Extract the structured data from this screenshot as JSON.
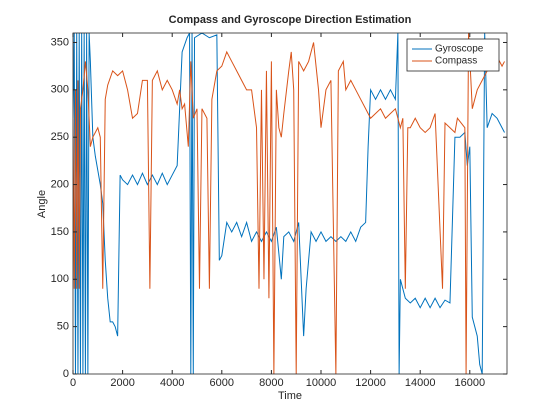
{
  "chart_data": {
    "type": "line",
    "title": "Compass and Gyroscope Direction Estimation",
    "x_label": "Time",
    "y_label": "Angle",
    "xlim": [
      0,
      17500
    ],
    "ylim": [
      0,
      360
    ],
    "xticks": [
      0,
      2000,
      4000,
      6000,
      8000,
      10000,
      12000,
      14000,
      16000
    ],
    "yticks": [
      0,
      50,
      100,
      150,
      200,
      250,
      300,
      350
    ],
    "legend": "upper right",
    "series": [
      {
        "name": "Gyroscope",
        "color": "#0072bd",
        "x": [
          0,
          50,
          100,
          150,
          200,
          250,
          300,
          350,
          400,
          450,
          500,
          550,
          600,
          650,
          700,
          800,
          900,
          1000,
          1100,
          1200,
          1300,
          1400,
          1500,
          1600,
          1700,
          1800,
          1900,
          2000,
          2200,
          2400,
          2600,
          2800,
          3000,
          3200,
          3400,
          3600,
          3800,
          4000,
          4200,
          4300,
          4400,
          4600,
          4700,
          4750,
          4800,
          4850,
          4900,
          5200,
          5500,
          5800,
          5900,
          6000,
          6200,
          6400,
          6600,
          6800,
          7000,
          7200,
          7400,
          7600,
          7800,
          8000,
          8200,
          8400,
          8500,
          8700,
          8900,
          9100,
          9200,
          9300,
          9400,
          9600,
          9800,
          10000,
          10200,
          10400,
          10600,
          10800,
          11000,
          11200,
          11400,
          11600,
          11800,
          11900,
          12000,
          12200,
          12400,
          12600,
          12800,
          13000,
          13100,
          13150,
          13200,
          13400,
          13600,
          13800,
          14000,
          14200,
          14400,
          14600,
          14800,
          15000,
          15200,
          15400,
          15600,
          15800,
          15900,
          16000,
          16100,
          16300,
          16400,
          16500,
          16600,
          16700,
          16900,
          17100,
          17300,
          17400
        ],
        "values": [
          270,
          360,
          0,
          360,
          0,
          360,
          0,
          360,
          0,
          360,
          0,
          360,
          0,
          360,
          330,
          250,
          230,
          215,
          200,
          180,
          120,
          80,
          55,
          55,
          50,
          40,
          210,
          205,
          200,
          210,
          200,
          212,
          200,
          210,
          200,
          212,
          200,
          210,
          220,
          280,
          340,
          355,
          360,
          0,
          360,
          0,
          355,
          360,
          355,
          358,
          120,
          125,
          160,
          150,
          160,
          145,
          160,
          140,
          150,
          140,
          150,
          140,
          155,
          100,
          145,
          150,
          140,
          160,
          100,
          40,
          90,
          150,
          140,
          150,
          140,
          145,
          140,
          145,
          140,
          150,
          140,
          155,
          160,
          240,
          300,
          290,
          300,
          290,
          300,
          290,
          360,
          0,
          100,
          80,
          75,
          80,
          70,
          80,
          70,
          80,
          70,
          78,
          75,
          250,
          250,
          255,
          220,
          240,
          60,
          40,
          10,
          0,
          360,
          260,
          275,
          270,
          260,
          255
        ]
      },
      {
        "name": "Compass",
        "color": "#d95319",
        "x": [
          0,
          50,
          100,
          150,
          200,
          250,
          300,
          400,
          500,
          600,
          700,
          800,
          1000,
          1100,
          1200,
          1300,
          1400,
          1600,
          1800,
          2000,
          2200,
          2400,
          2600,
          2800,
          3000,
          3100,
          3200,
          3400,
          3600,
          3800,
          4000,
          4200,
          4300,
          4400,
          4500,
          4650,
          4750,
          4850,
          5000,
          5100,
          5200,
          5400,
          5500,
          5600,
          5800,
          6000,
          6200,
          6400,
          6600,
          6800,
          7000,
          7200,
          7400,
          7500,
          7600,
          7700,
          7800,
          7900,
          8000,
          8100,
          8200,
          8300,
          8400,
          8500,
          8700,
          8800,
          8900,
          9000,
          9100,
          9300,
          9500,
          9700,
          9900,
          10000,
          10200,
          10400,
          10600,
          10700,
          10900,
          11000,
          11200,
          11400,
          11600,
          11800,
          12000,
          12200,
          12400,
          12600,
          12800,
          13000,
          13200,
          13300,
          13400,
          13500,
          13600,
          13800,
          14000,
          14200,
          14400,
          14600,
          14900,
          15000,
          15200,
          15400,
          15500,
          15800,
          15850,
          15950,
          16100,
          16300,
          16500,
          16700,
          16900,
          17100,
          17300,
          17400
        ],
        "values": [
          270,
          90,
          300,
          90,
          310,
          90,
          280,
          300,
          330,
          300,
          240,
          250,
          260,
          250,
          90,
          290,
          305,
          320,
          315,
          320,
          300,
          270,
          275,
          310,
          310,
          90,
          310,
          320,
          300,
          310,
          300,
          285,
          300,
          280,
          285,
          240,
          330,
          270,
          280,
          90,
          280,
          270,
          90,
          290,
          320,
          325,
          340,
          330,
          320,
          310,
          300,
          300,
          260,
          90,
          300,
          100,
          320,
          80,
          330,
          0,
          300,
          260,
          250,
          275,
          320,
          340,
          300,
          0,
          330,
          320,
          330,
          350,
          300,
          260,
          300,
          310,
          0,
          320,
          330,
          300,
          310,
          300,
          290,
          280,
          270,
          275,
          280,
          270,
          275,
          280,
          260,
          270,
          90,
          260,
          260,
          270,
          260,
          255,
          260,
          275,
          90,
          265,
          260,
          255,
          270,
          260,
          0,
          360,
          280,
          300,
          310,
          320,
          330,
          335,
          325,
          330
        ]
      }
    ]
  }
}
